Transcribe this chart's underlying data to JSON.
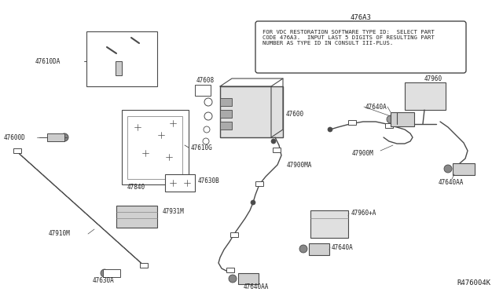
{
  "bg_color": "#ffffff",
  "diagram_ref": "R476004K",
  "note_label": "476A3",
  "note_text": "FOR VDC RESTORATION SOFTWARE TYPE ID:  SELECT PART\nCODE 476A3.  INPUT LAST 5 DIGITS OF RESULTING PART\nNUMBER AS TYPE ID IN CONSULT III-PLUS.",
  "line_color": "#4a4a4a",
  "text_color": "#222222",
  "label_fontsize": 5.5,
  "note_fontsize": 5.2
}
